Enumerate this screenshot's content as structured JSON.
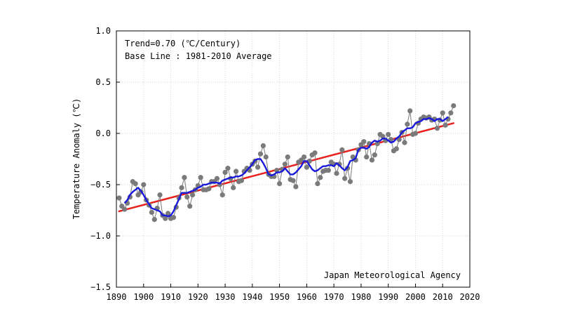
{
  "chart_data": {
    "type": "line",
    "title": "",
    "xlabel": "",
    "ylabel": "Temperature Anomaly (℃)",
    "xlim": [
      1890,
      2020
    ],
    "ylim": [
      -1.5,
      1.0
    ],
    "x_ticks": [
      1890,
      1900,
      1910,
      1920,
      1930,
      1940,
      1950,
      1960,
      1970,
      1980,
      1990,
      2000,
      2010,
      2020
    ],
    "x_tick_labels": [
      "1890",
      "1900",
      "1910",
      "1920",
      "1930",
      "1940",
      "1950",
      "1960",
      "1970",
      "1980",
      "1990",
      "2000",
      "2010",
      "2020"
    ],
    "y_ticks": [
      -1.5,
      -1.0,
      -0.5,
      0.0,
      0.5,
      1.0
    ],
    "y_tick_labels": [
      "−1.5",
      "−1.0",
      "−0.5",
      "0.0",
      "0.5",
      "1.0"
    ],
    "grid": true,
    "annotations": {
      "trend": "Trend=0.70 (℃/Century)",
      "baseline": "Base Line : 1981-2010 Average",
      "source": "Japan Meteorological Agency"
    },
    "series": [
      {
        "kind": "annual",
        "color": "#7a7a7a",
        "x": [
          1891,
          1892,
          1893,
          1894,
          1895,
          1896,
          1897,
          1898,
          1899,
          1900,
          1901,
          1902,
          1903,
          1904,
          1905,
          1906,
          1907,
          1908,
          1909,
          1910,
          1911,
          1912,
          1913,
          1914,
          1915,
          1916,
          1917,
          1918,
          1919,
          1920,
          1921,
          1922,
          1923,
          1924,
          1925,
          1926,
          1927,
          1928,
          1929,
          1930,
          1931,
          1932,
          1933,
          1934,
          1935,
          1936,
          1937,
          1938,
          1939,
          1940,
          1941,
          1942,
          1943,
          1944,
          1945,
          1946,
          1947,
          1948,
          1949,
          1950,
          1951,
          1952,
          1953,
          1954,
          1955,
          1956,
          1957,
          1958,
          1959,
          1960,
          1961,
          1962,
          1963,
          1964,
          1965,
          1966,
          1967,
          1968,
          1969,
          1970,
          1971,
          1972,
          1973,
          1974,
          1975,
          1976,
          1977,
          1978,
          1979,
          1980,
          1981,
          1982,
          1983,
          1984,
          1985,
          1986,
          1987,
          1988,
          1989,
          1990,
          1991,
          1992,
          1993,
          1994,
          1995,
          1996,
          1997,
          1998,
          1999,
          2000,
          2001,
          2002,
          2003,
          2004,
          2005,
          2006,
          2007,
          2008,
          2009,
          2010,
          2011,
          2012,
          2013,
          2014
        ],
        "values": [
          -0.63,
          -0.71,
          -0.74,
          -0.68,
          -0.62,
          -0.47,
          -0.49,
          -0.6,
          -0.57,
          -0.5,
          -0.65,
          -0.7,
          -0.77,
          -0.84,
          -0.73,
          -0.6,
          -0.8,
          -0.83,
          -0.78,
          -0.83,
          -0.82,
          -0.72,
          -0.63,
          -0.53,
          -0.43,
          -0.62,
          -0.71,
          -0.6,
          -0.55,
          -0.51,
          -0.43,
          -0.55,
          -0.55,
          -0.54,
          -0.47,
          -0.47,
          -0.44,
          -0.5,
          -0.6,
          -0.38,
          -0.34,
          -0.44,
          -0.53,
          -0.37,
          -0.47,
          -0.46,
          -0.37,
          -0.34,
          -0.36,
          -0.3,
          -0.27,
          -0.33,
          -0.2,
          -0.12,
          -0.23,
          -0.4,
          -0.42,
          -0.42,
          -0.36,
          -0.49,
          -0.35,
          -0.3,
          -0.23,
          -0.45,
          -0.46,
          -0.52,
          -0.28,
          -0.26,
          -0.23,
          -0.33,
          -0.27,
          -0.21,
          -0.19,
          -0.49,
          -0.43,
          -0.37,
          -0.36,
          -0.36,
          -0.28,
          -0.3,
          -0.39,
          -0.3,
          -0.16,
          -0.44,
          -0.34,
          -0.47,
          -0.23,
          -0.26,
          -0.16,
          -0.11,
          -0.08,
          -0.23,
          -0.1,
          -0.26,
          -0.21,
          -0.1,
          -0.01,
          -0.03,
          -0.07,
          -0.01,
          -0.06,
          -0.17,
          -0.15,
          -0.06,
          0.01,
          -0.09,
          0.09,
          0.22,
          -0.01,
          0.0,
          0.1,
          0.14,
          0.16,
          0.15,
          0.16,
          0.13,
          0.14,
          0.05,
          0.13,
          0.2,
          0.08,
          0.14,
          0.2,
          0.27
        ]
      },
      {
        "kind": "5-year running mean",
        "color": "#1a1adc",
        "x": [
          1893,
          1894,
          1895,
          1896,
          1897,
          1898,
          1899,
          1900,
          1901,
          1902,
          1903,
          1904,
          1905,
          1906,
          1907,
          1908,
          1909,
          1910,
          1911,
          1912,
          1913,
          1914,
          1915,
          1916,
          1917,
          1918,
          1919,
          1920,
          1921,
          1922,
          1923,
          1924,
          1925,
          1926,
          1927,
          1928,
          1929,
          1930,
          1931,
          1932,
          1933,
          1934,
          1935,
          1936,
          1937,
          1938,
          1939,
          1940,
          1941,
          1942,
          1943,
          1944,
          1945,
          1946,
          1947,
          1948,
          1949,
          1950,
          1951,
          1952,
          1953,
          1954,
          1955,
          1956,
          1957,
          1958,
          1959,
          1960,
          1961,
          1962,
          1963,
          1964,
          1965,
          1966,
          1967,
          1968,
          1969,
          1970,
          1971,
          1972,
          1973,
          1974,
          1975,
          1976,
          1977,
          1978,
          1979,
          1980,
          1981,
          1982,
          1983,
          1984,
          1985,
          1986,
          1987,
          1988,
          1989,
          1990,
          1991,
          1992,
          1993,
          1994,
          1995,
          1996,
          1997,
          1998,
          1999,
          2000,
          2001,
          2002,
          2003,
          2004,
          2005,
          2006,
          2007,
          2008,
          2009,
          2010,
          2011,
          2012
        ],
        "values": [
          -0.68,
          -0.65,
          -0.6,
          -0.57,
          -0.55,
          -0.53,
          -0.56,
          -0.6,
          -0.65,
          -0.69,
          -0.73,
          -0.74,
          -0.75,
          -0.76,
          -0.8,
          -0.8,
          -0.81,
          -0.8,
          -0.76,
          -0.7,
          -0.64,
          -0.58,
          -0.58,
          -0.58,
          -0.57,
          -0.56,
          -0.55,
          -0.53,
          -0.52,
          -0.5,
          -0.5,
          -0.49,
          -0.48,
          -0.48,
          -0.48,
          -0.49,
          -0.46,
          -0.45,
          -0.44,
          -0.43,
          -0.43,
          -0.42,
          -0.42,
          -0.41,
          -0.39,
          -0.36,
          -0.33,
          -0.3,
          -0.26,
          -0.25,
          -0.25,
          -0.29,
          -0.34,
          -0.4,
          -0.41,
          -0.4,
          -0.38,
          -0.38,
          -0.37,
          -0.34,
          -0.37,
          -0.4,
          -0.4,
          -0.38,
          -0.35,
          -0.32,
          -0.27,
          -0.27,
          -0.31,
          -0.35,
          -0.37,
          -0.36,
          -0.34,
          -0.32,
          -0.32,
          -0.31,
          -0.31,
          -0.32,
          -0.29,
          -0.31,
          -0.34,
          -0.36,
          -0.33,
          -0.27,
          -0.26,
          -0.24,
          -0.16,
          -0.14,
          -0.14,
          -0.15,
          -0.13,
          -0.09,
          -0.07,
          -0.08,
          -0.07,
          -0.05,
          -0.05,
          -0.07,
          -0.09,
          -0.08,
          -0.05,
          -0.03,
          0.01,
          0.03,
          0.05,
          0.05,
          0.06,
          0.1,
          0.11,
          0.12,
          0.14,
          0.14,
          0.15,
          0.14,
          0.12,
          0.14,
          0.14,
          0.12,
          0.14,
          0.16
        ]
      },
      {
        "kind": "linear trend",
        "color": "#e8201e",
        "x": [
          1891,
          2014
        ],
        "values": [
          -0.76,
          0.1
        ]
      }
    ]
  }
}
